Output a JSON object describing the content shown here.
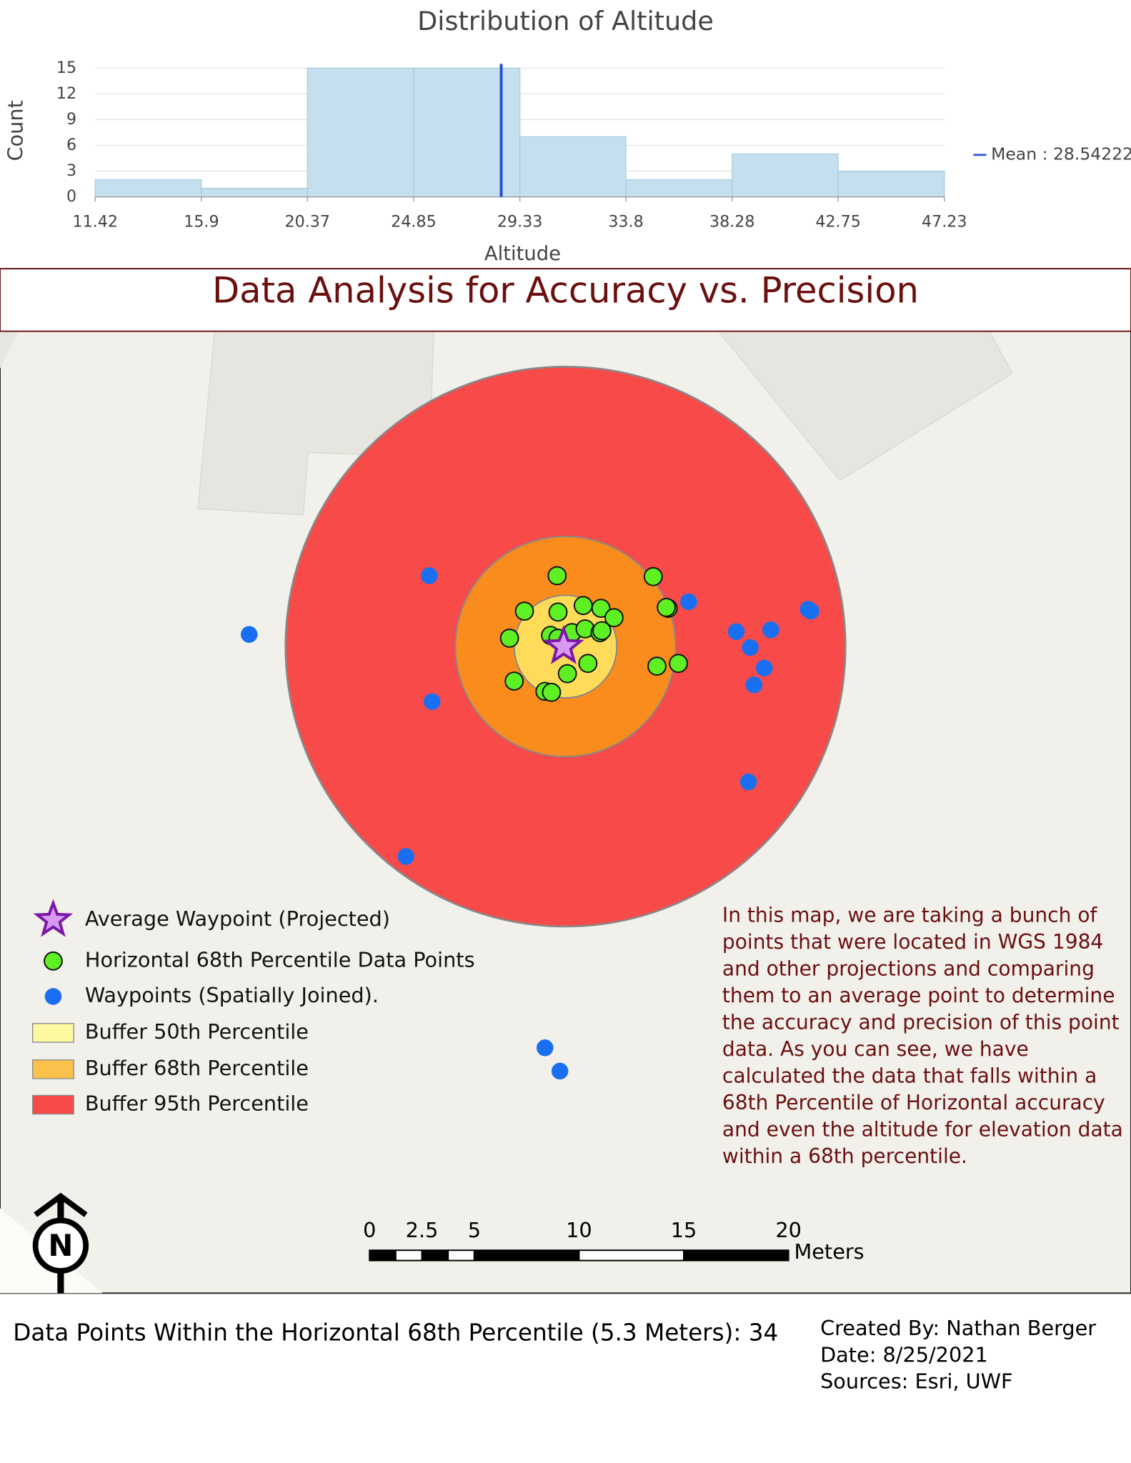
{
  "chart_data": {
    "type": "histogram",
    "title": "Distribution of Altitude",
    "x_label": "Altitude",
    "y_label": "Count",
    "bins": [
      11.42,
      15.9,
      20.37,
      24.85,
      29.33,
      33.8,
      38.28,
      42.75,
      47.23
    ],
    "values": [
      2,
      1,
      15,
      15,
      7,
      2,
      5,
      3
    ],
    "color": "#c5dfee",
    "xlim": [
      11.42,
      47.23
    ],
    "xticks": [
      11.42,
      15.9,
      20.37,
      24.85,
      29.33,
      33.8,
      38.28,
      42.75,
      47.23
    ],
    "ylim": [
      0,
      15.5
    ],
    "yticks": [
      0,
      3,
      6,
      9,
      12,
      15
    ],
    "grid": true,
    "mean": {
      "value": 28.54222,
      "label": "Mean : 28.54222",
      "color": "#1f4fd8"
    }
  },
  "map": {
    "title": "Data Analysis for Accuracy vs. Precision",
    "legend": [
      "Average Waypoint (Projected)",
      "Horizontal 68th Percentile Data Points",
      "Waypoints (Spatially Joined).",
      "Buffer 50th Percentile",
      "Buffer 68th Percentile",
      "Buffer 95th Percentile"
    ],
    "description": [
      "In this map, we are taking a bunch of",
      "points that were located in WGS 1984",
      "and other projections and comparing",
      "them to an average point to determine",
      "the accuracy and precision of this point",
      "data. As you can see, we have",
      "calculated the data that falls within a",
      "68th Percentile of Horizontal accuracy",
      "and even the altitude for elevation data",
      "within a 68th percentile."
    ],
    "north": "N",
    "scale_bar": {
      "ticks": [
        0,
        2.5,
        5,
        10,
        15,
        20
      ],
      "unit": "Meters"
    }
  },
  "footer": {
    "summary": "Data Points Within the Horizontal 68th Percentile (5.3 Meters): 34",
    "credits": [
      "Created By: Nathan Berger",
      "Date: 8/25/2021",
      "Sources: Esri, UWF"
    ]
  }
}
